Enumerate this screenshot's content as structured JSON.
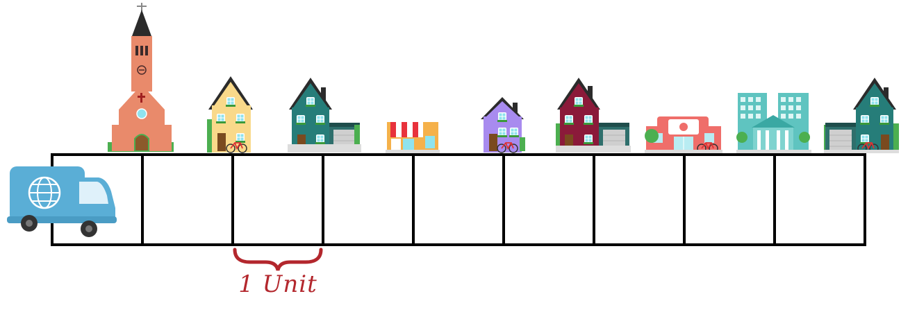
{
  "diagram": {
    "grid": {
      "rows": 1,
      "columns": 9
    },
    "unit_label": "1 Unit",
    "colors": {
      "grid_line": "#000000",
      "brace": "#b3272d",
      "van_body": "#5aaed6",
      "church": "#e98a6b",
      "house_yellow": "#f9d98a",
      "house_teal": "#267d79",
      "shop_awning": "#e8323c",
      "house_purple": "#a88bef",
      "house_maroon": "#8b1a3a",
      "gym": "#ef6e6a",
      "bank": "#5fc4c0",
      "roof": "#2b2b2b"
    },
    "buildings": [
      {
        "icon": "church-icon"
      },
      {
        "icon": "yellow-house-icon"
      },
      {
        "icon": "teal-house-garage-icon"
      },
      {
        "icon": "shop-icon"
      },
      {
        "icon": "purple-house-icon"
      },
      {
        "icon": "maroon-house-garage-icon"
      },
      {
        "icon": "gym-icon"
      },
      {
        "icon": "bank-building-icon"
      },
      {
        "icon": "teal-house-garage-icon"
      }
    ],
    "vehicle": {
      "icon": "delivery-van-icon"
    }
  }
}
